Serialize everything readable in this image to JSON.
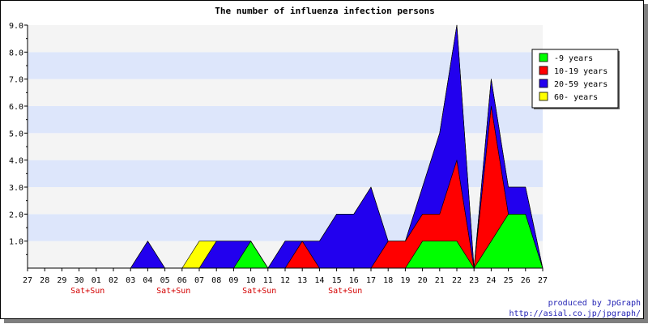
{
  "chart_data": {
    "type": "area",
    "title": "The number of influenza infection persons",
    "categories": [
      "27",
      "28",
      "29",
      "30",
      "01",
      "02",
      "03",
      "04",
      "05",
      "06",
      "07",
      "08",
      "09",
      "10",
      "11",
      "12",
      "13",
      "14",
      "15",
      "16",
      "17",
      "18",
      "19",
      "20",
      "21",
      "22",
      "23",
      "24",
      "25",
      "26",
      "27"
    ],
    "weekend_labels": [
      {
        "index": 3,
        "text": "Sat+Sun"
      },
      {
        "index": 8,
        "text": "Sat+Sun"
      },
      {
        "index": 13,
        "text": "Sat+Sun"
      },
      {
        "index": 18,
        "text": "Sat+Sun"
      }
    ],
    "series": [
      {
        "name": "-9 years",
        "color": "#00ff00",
        "values": [
          0,
          0,
          0,
          0,
          0,
          0,
          0,
          0,
          0,
          0,
          0,
          0,
          0,
          1,
          0,
          0,
          0,
          0,
          0,
          0,
          0,
          0,
          0,
          1,
          1,
          1,
          0,
          1,
          2,
          2,
          0
        ]
      },
      {
        "name": "10-19 years",
        "color": "#ff0000",
        "values": [
          0,
          0,
          0,
          0,
          0,
          0,
          0,
          0,
          0,
          0,
          0,
          0,
          0,
          0,
          0,
          0,
          1,
          0,
          0,
          0,
          0,
          1,
          1,
          1,
          1,
          3,
          0,
          5,
          0,
          0,
          0
        ]
      },
      {
        "name": "20-59 years",
        "color": "#2200ee",
        "values": [
          0,
          0,
          0,
          0,
          0,
          0,
          0,
          1,
          0,
          0,
          0,
          1,
          1,
          0,
          0,
          1,
          0,
          1,
          2,
          2,
          3,
          0,
          0,
          1,
          3,
          5,
          0,
          1,
          1,
          1,
          0
        ]
      },
      {
        "name": "60- years",
        "color": "#ffff00",
        "values": [
          0,
          0,
          0,
          0,
          0,
          0,
          0,
          0,
          0,
          0,
          1,
          0,
          0,
          0,
          0,
          0,
          0,
          0,
          0,
          0,
          0,
          0,
          0,
          0,
          0,
          0,
          0,
          0,
          0,
          0,
          0
        ]
      }
    ],
    "stacking": "stacked",
    "ylim": [
      0,
      9
    ],
    "y_ticks": [
      "1.0",
      "2.0",
      "3.0",
      "4.0",
      "5.0",
      "6.0",
      "7.0",
      "8.0",
      "9.0"
    ],
    "grid": "alternating horizontal bands",
    "legend_position": "right",
    "band_colors": [
      "#dde6fb",
      "#f4f4f4"
    ],
    "weekend_color": "#d40000"
  },
  "credits": {
    "line1": "produced by JpGraph",
    "line2": "http://asial.co.jp/jpgraph/"
  }
}
